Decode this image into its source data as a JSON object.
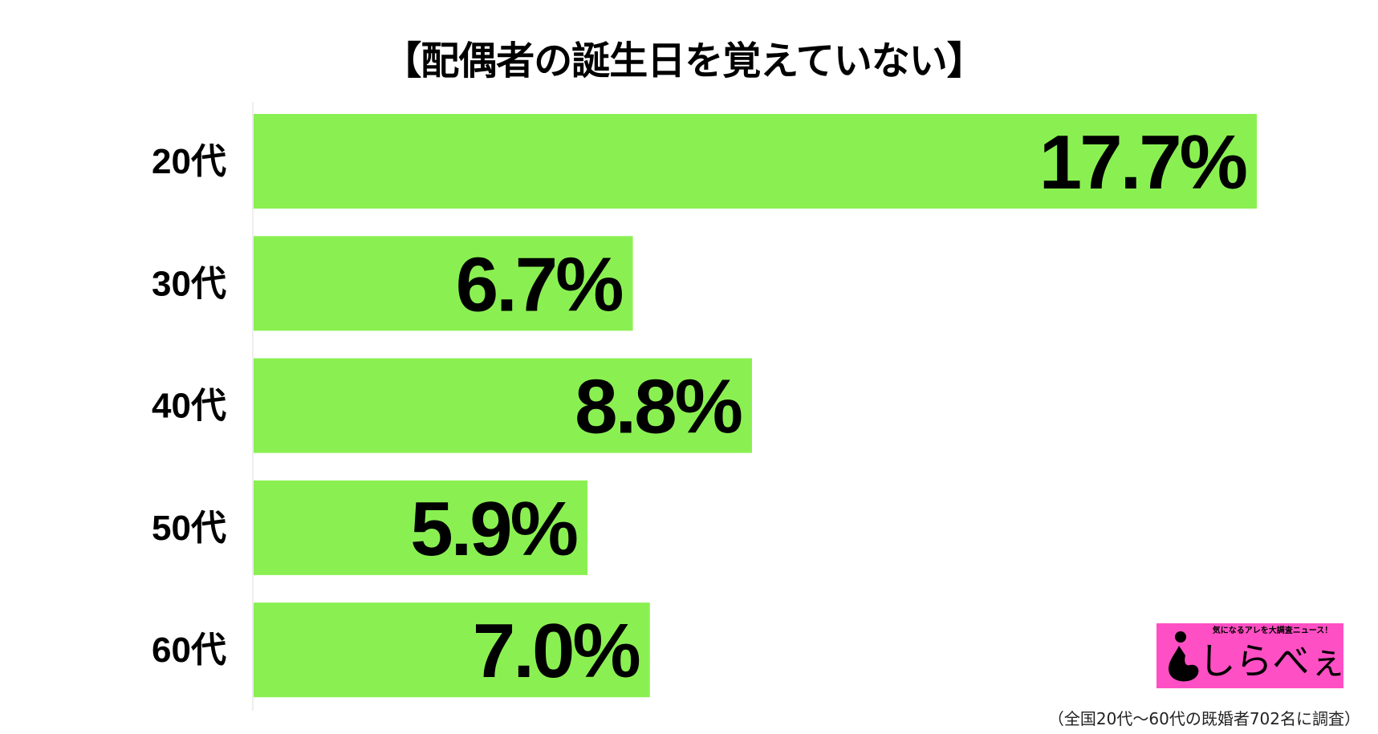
{
  "chart_data": {
    "type": "bar",
    "orientation": "horizontal",
    "title": "【配偶者の誕生日を覚えていない】",
    "categories": [
      "20代",
      "30代",
      "40代",
      "50代",
      "60代"
    ],
    "values": [
      17.7,
      6.7,
      8.8,
      5.9,
      7.0
    ],
    "value_labels": [
      "17.7%",
      "6.7%",
      "8.8%",
      "5.9%",
      "7.0%"
    ],
    "unit": "%",
    "xlim": [
      0,
      17.7
    ],
    "grid": false,
    "bar_color": "#8af052"
  },
  "footnote": "（全国20代〜60代の既婚者702名に調査）",
  "logo": {
    "tagline": "気になるアレを大調査ニュース！",
    "name": "しらべぇ",
    "color": "#ff4fc4"
  }
}
